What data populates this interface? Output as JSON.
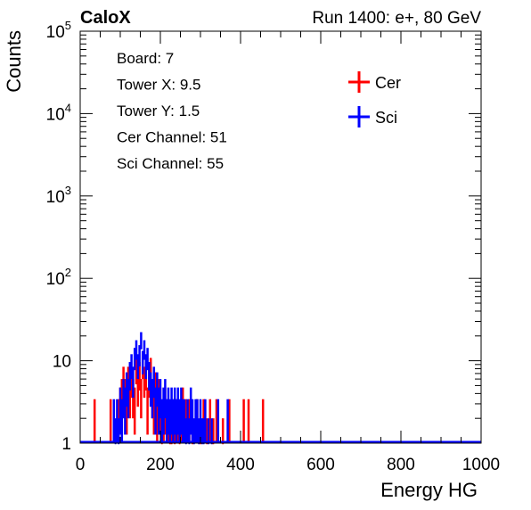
{
  "header": {
    "left_title": "CaloX",
    "right_title": "Run 1400: e+, 80 GeV"
  },
  "info_box": {
    "lines": [
      "Board: 7",
      "Tower X: 9.5",
      "Tower Y: 1.5",
      "Cer Channel: 51",
      "Sci Channel: 55"
    ]
  },
  "chart_data": {
    "type": "histogram",
    "xlabel": "Energy HG",
    "ylabel": "Counts",
    "xlim": [
      0,
      1000
    ],
    "ylim": [
      1,
      100000
    ],
    "y_scale": "log",
    "bin_width": 4,
    "grid": false,
    "legend_position": "top-right",
    "x_ticks": [
      "0",
      "200",
      "400",
      "600",
      "800",
      "1000"
    ],
    "y_ticks": [
      {
        "value": 1,
        "base": "1",
        "exp": ""
      },
      {
        "value": 10,
        "base": "10",
        "exp": ""
      },
      {
        "value": 100,
        "base": "10",
        "exp": "2"
      },
      {
        "value": 1000,
        "base": "10",
        "exp": "3"
      },
      {
        "value": 10000,
        "base": "10",
        "exp": "4"
      },
      {
        "value": 100000,
        "base": "10",
        "exp": "5"
      }
    ],
    "series": [
      {
        "name": "Cer",
        "color": "#ff0000",
        "bins": [
          [
            34,
            2
          ],
          [
            74,
            2
          ],
          [
            94,
            2
          ],
          [
            98,
            3
          ],
          [
            102,
            4
          ],
          [
            106,
            6
          ],
          [
            110,
            4
          ],
          [
            114,
            3
          ],
          [
            118,
            6
          ],
          [
            122,
            4
          ],
          [
            126,
            6
          ],
          [
            130,
            4
          ],
          [
            134,
            3
          ],
          [
            138,
            8
          ],
          [
            142,
            5
          ],
          [
            146,
            7
          ],
          [
            150,
            4
          ],
          [
            154,
            9
          ],
          [
            158,
            6
          ],
          [
            162,
            7
          ],
          [
            166,
            3
          ],
          [
            170,
            6
          ],
          [
            174,
            8
          ],
          [
            178,
            4
          ],
          [
            182,
            3
          ],
          [
            186,
            5
          ],
          [
            190,
            2
          ],
          [
            194,
            4
          ],
          [
            198,
            3
          ],
          [
            202,
            1
          ],
          [
            206,
            2
          ],
          [
            210,
            3
          ],
          [
            214,
            2
          ],
          [
            218,
            2
          ],
          [
            222,
            1
          ],
          [
            226,
            1
          ],
          [
            230,
            2
          ],
          [
            234,
            1
          ],
          [
            238,
            2
          ],
          [
            242,
            2
          ],
          [
            246,
            1
          ],
          [
            250,
            2
          ],
          [
            254,
            3
          ],
          [
            262,
            2
          ],
          [
            270,
            2
          ],
          [
            278,
            1
          ],
          [
            290,
            2
          ],
          [
            298,
            1
          ],
          [
            306,
            2
          ],
          [
            314,
            1
          ],
          [
            322,
            2
          ],
          [
            330,
            1
          ],
          [
            338,
            2
          ],
          [
            354,
            1
          ],
          [
            370,
            2
          ],
          [
            406,
            2
          ],
          [
            418,
            2
          ],
          [
            454,
            2
          ]
        ]
      },
      {
        "name": "Sci",
        "color": "#0000ff",
        "bins": [
          [
            82,
            2
          ],
          [
            86,
            1
          ],
          [
            90,
            2
          ],
          [
            94,
            1
          ],
          [
            98,
            3
          ],
          [
            102,
            2
          ],
          [
            106,
            4
          ],
          [
            110,
            3
          ],
          [
            114,
            5
          ],
          [
            118,
            4
          ],
          [
            122,
            7
          ],
          [
            126,
            9
          ],
          [
            130,
            6
          ],
          [
            134,
            11
          ],
          [
            138,
            14
          ],
          [
            142,
            9
          ],
          [
            146,
            12
          ],
          [
            150,
            18
          ],
          [
            154,
            10
          ],
          [
            158,
            14
          ],
          [
            162,
            9
          ],
          [
            166,
            11
          ],
          [
            170,
            7
          ],
          [
            174,
            5
          ],
          [
            178,
            4
          ],
          [
            182,
            6
          ],
          [
            186,
            3
          ],
          [
            190,
            5
          ],
          [
            194,
            3
          ],
          [
            198,
            4
          ],
          [
            202,
            2
          ],
          [
            206,
            3
          ],
          [
            210,
            4
          ],
          [
            214,
            2
          ],
          [
            218,
            3
          ],
          [
            222,
            2
          ],
          [
            226,
            3
          ],
          [
            230,
            2
          ],
          [
            234,
            3
          ],
          [
            238,
            2
          ],
          [
            242,
            3
          ],
          [
            246,
            2
          ],
          [
            250,
            3
          ],
          [
            254,
            2
          ],
          [
            258,
            2
          ],
          [
            262,
            1
          ],
          [
            266,
            2
          ],
          [
            270,
            1
          ],
          [
            274,
            3
          ],
          [
            278,
            2
          ],
          [
            282,
            1
          ],
          [
            286,
            2
          ],
          [
            290,
            2
          ],
          [
            294,
            1
          ],
          [
            298,
            2
          ],
          [
            302,
            1
          ],
          [
            306,
            1
          ],
          [
            310,
            2
          ],
          [
            318,
            1
          ],
          [
            326,
            1
          ],
          [
            342,
            2
          ],
          [
            366,
            2
          ]
        ]
      }
    ]
  }
}
